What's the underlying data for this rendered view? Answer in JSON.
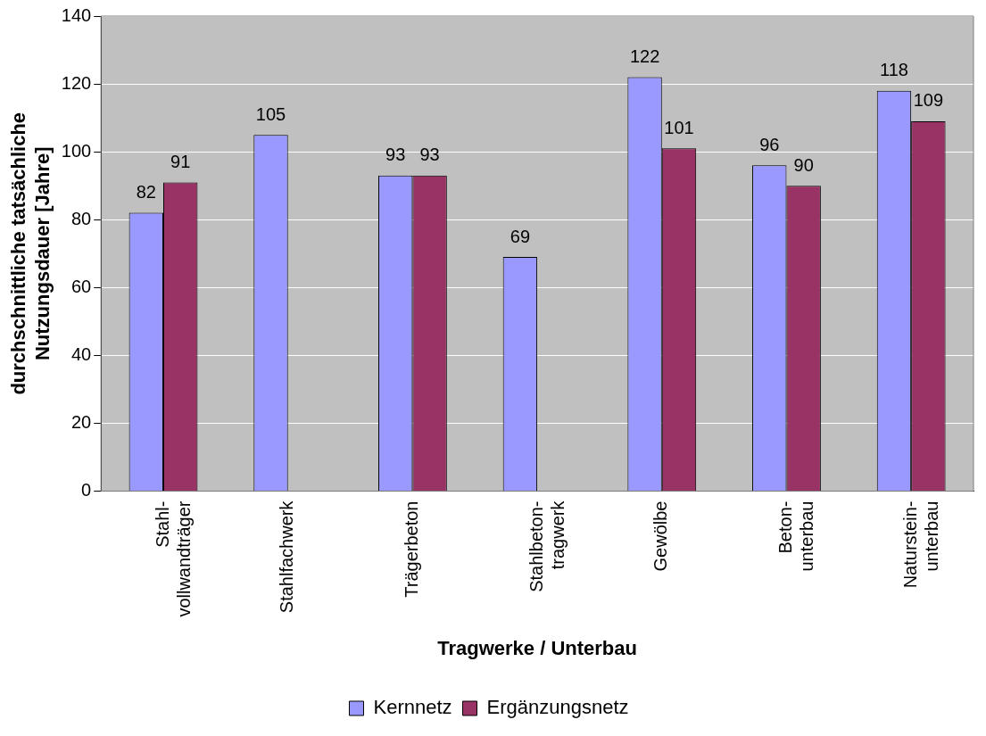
{
  "chart_data": {
    "type": "bar",
    "xlabel": "Tragwerke / Unterbau",
    "ylabel": "durchschnittliche tatsächliche\nNutzungsdauer [Jahre]",
    "categories": [
      "Stahl-\nvollwandträger",
      "Stahlfachwerk",
      "Trägerbeton",
      "Stahlbeton-\ntragwerk",
      "Gewölbe",
      "Beton-\nunterbau",
      "Naturstein-\nunterbau"
    ],
    "series": [
      {
        "name": "Kernnetz",
        "color": "#9999ff",
        "values": [
          82,
          105,
          93,
          69,
          122,
          96,
          118
        ]
      },
      {
        "name": "Ergänzungsnetz",
        "color": "#993366",
        "values": [
          91,
          null,
          93,
          null,
          101,
          90,
          109
        ]
      }
    ],
    "ylim": [
      0,
      140
    ],
    "yticks": [
      0,
      20,
      40,
      60,
      80,
      100,
      120,
      140
    ],
    "grid": "y",
    "legend": "bottom",
    "data_labels": true
  }
}
